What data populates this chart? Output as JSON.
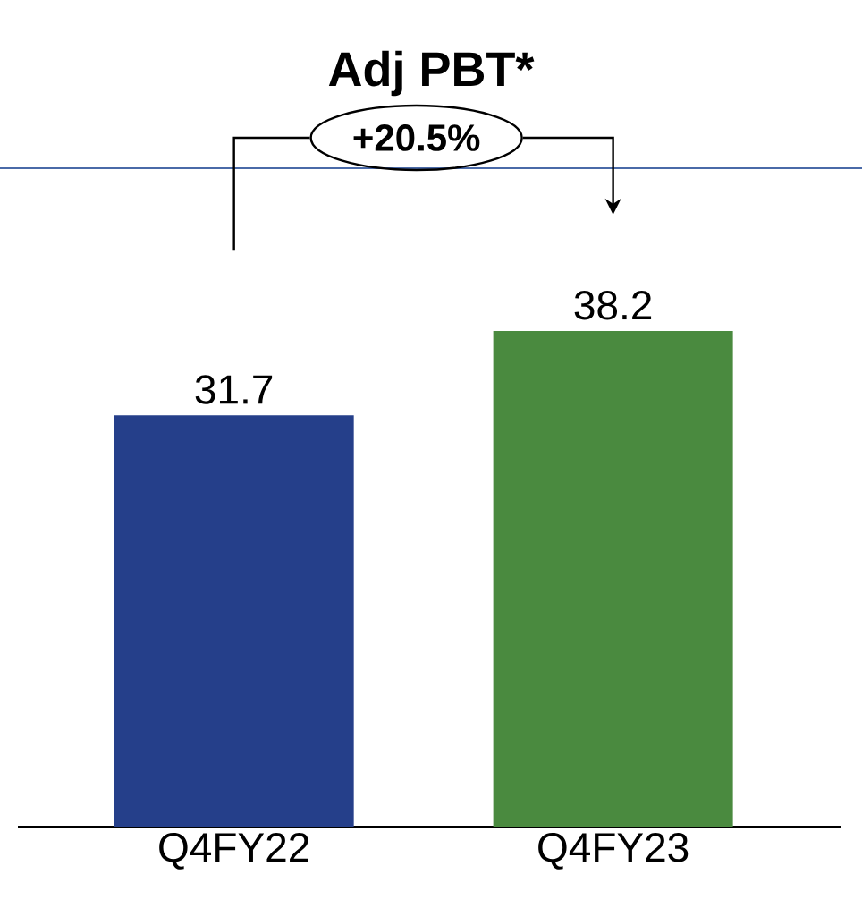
{
  "chart_data": {
    "type": "bar",
    "title": "Adj PBT*",
    "categories": [
      "Q4FY22",
      "Q4FY23"
    ],
    "values": [
      31.7,
      38.2
    ],
    "colors": [
      "#253f8a",
      "#4a8a3f"
    ],
    "data_labels": true,
    "annotations": [
      "+20.5%"
    ]
  }
}
